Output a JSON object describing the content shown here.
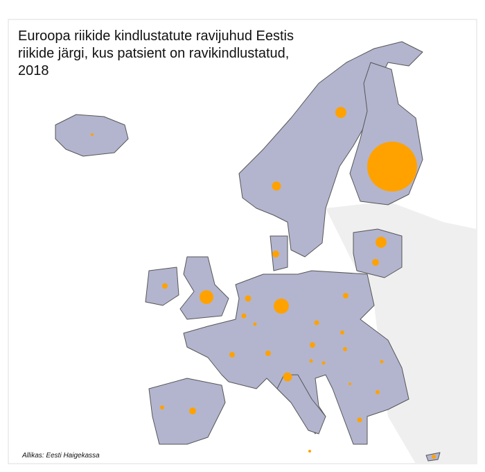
{
  "title": "Euroopa riikide kindlustatute ravijuhud Eestis riikide järgi, kus patsient on ravikindlustatud, 2018",
  "source": "Allikas: Eesti Haigekassa",
  "bubbles": [
    8,
    85,
    128,
    2592,
    128,
    50,
    50,
    200,
    32,
    41,
    25,
    13,
    242,
    32,
    25,
    18,
    32,
    32,
    18,
    32,
    13,
    13,
    85,
    13,
    8,
    18,
    50,
    18,
    25,
    8,
    18
  ]
}
